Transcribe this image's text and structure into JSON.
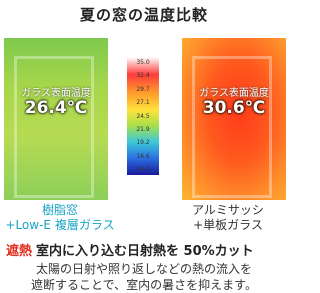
{
  "title": "夏の窓の温度比較",
  "scale": [
    "35.0",
    "32.4",
    "29.7",
    "27.1",
    "24.5",
    "21.9",
    "19.2",
    "16.6",
    "14.0"
  ],
  "left": {
    "label": "ガラス表面温度",
    "temperature": "26.4℃",
    "caption": [
      "樹脂窓",
      "+Low-E 複層ガラス"
    ]
  },
  "right": {
    "label": "ガラス表面温度",
    "temperature": "30.6℃",
    "caption": [
      "アルミサッシ",
      "+単板ガラス"
    ]
  },
  "footer": {
    "badge": "遮熱",
    "headline": "室内に入り込む日射熱を 50%カット",
    "lines": [
      "太陽の日射や照り返しなどの熱の流入を",
      "遮断することで、室内の暑さを抑えます。"
    ]
  }
}
